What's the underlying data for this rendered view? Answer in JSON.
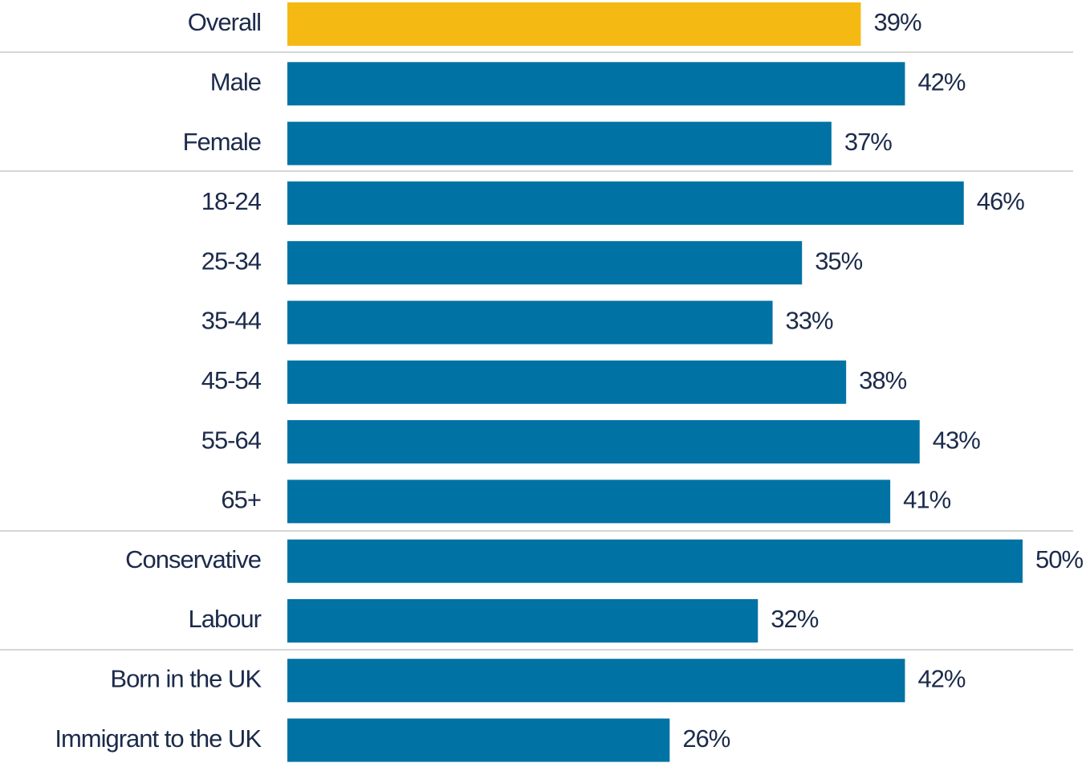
{
  "chart_data": {
    "type": "bar",
    "orientation": "horizontal",
    "categories": [
      "Overall",
      "Male",
      "Female",
      "18-24",
      "25-34",
      "35-44",
      "45-54",
      "55-64",
      "65+",
      "Conservative",
      "Labour",
      "Born in the UK",
      "Immigrant to the UK"
    ],
    "values": [
      39,
      42,
      37,
      46,
      35,
      33,
      38,
      43,
      41,
      50,
      32,
      42,
      26
    ],
    "value_labels": [
      "39%",
      "42%",
      "37%",
      "46%",
      "35%",
      "33%",
      "38%",
      "43%",
      "41%",
      "50%",
      "32%",
      "42%",
      "26%"
    ],
    "colors": [
      "#f5b914",
      "#0072a3",
      "#0072a3",
      "#0072a3",
      "#0072a3",
      "#0072a3",
      "#0072a3",
      "#0072a3",
      "#0072a3",
      "#0072a3",
      "#0072a3",
      "#0072a3",
      "#0072a3"
    ]
  }
}
